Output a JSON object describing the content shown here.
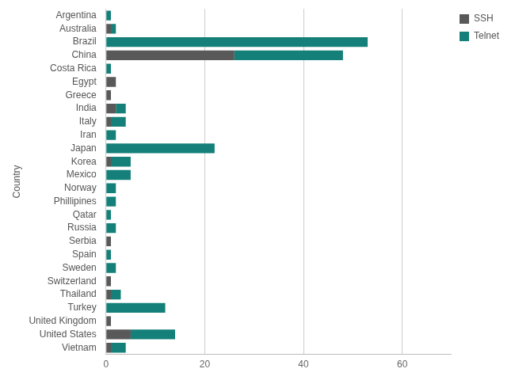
{
  "chart_data": {
    "type": "bar",
    "orientation": "horizontal",
    "stacked": true,
    "y_label": "Country",
    "categories": [
      "Argentina",
      "Australia",
      "Brazil",
      "China",
      "Costa Rica",
      "Egypt",
      "Greece",
      "India",
      "Italy",
      "Iran",
      "Japan",
      "Korea",
      "Mexico",
      "Norway",
      "Phillipines",
      "Qatar",
      "Russia",
      "Serbia",
      "Spain",
      "Sweden",
      "Switzerland",
      "Thailand",
      "Turkey",
      "United Kingdom",
      "United States",
      "Vietnam"
    ],
    "series": [
      {
        "name": "SSH",
        "color": "#595959",
        "values": [
          0,
          1,
          0,
          26,
          0,
          2,
          1,
          2,
          1,
          0,
          0,
          1,
          0,
          0,
          0,
          0,
          0,
          1,
          0,
          0,
          1,
          1,
          0,
          1,
          5,
          1
        ]
      },
      {
        "name": "Telnet",
        "color": "#158079",
        "values": [
          1,
          1,
          53,
          22,
          1,
          0,
          0,
          2,
          3,
          2,
          22,
          4,
          5,
          2,
          2,
          1,
          2,
          0,
          1,
          2,
          0,
          2,
          12,
          0,
          9,
          3
        ]
      }
    ],
    "xlim": [
      0,
      70
    ],
    "xticks": [
      0,
      20,
      40,
      60
    ],
    "grid": true,
    "legend": "right"
  }
}
